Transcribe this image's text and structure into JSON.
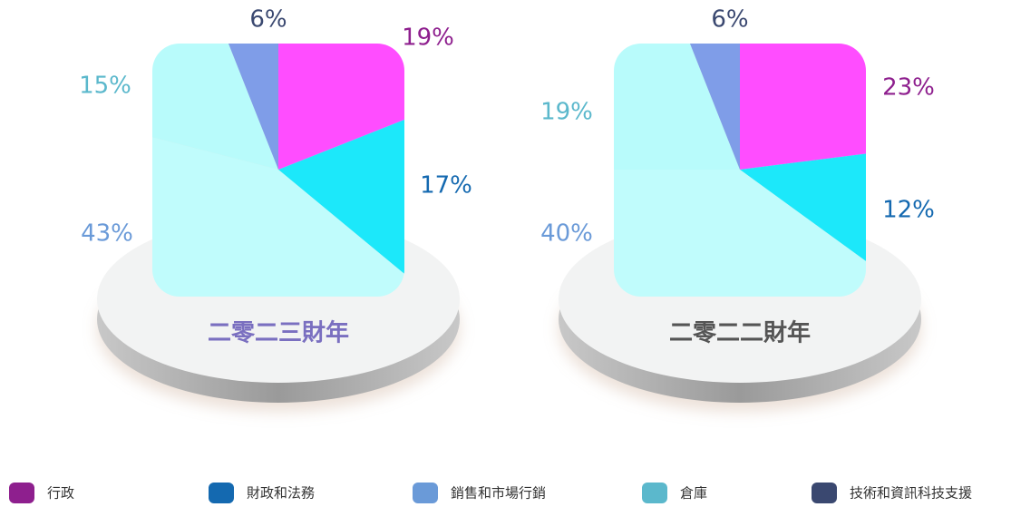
{
  "categories": [
    "行政",
    "財政和法務",
    "銷售和市場行銷",
    "倉庫",
    "技術和資訊科技支援"
  ],
  "legend_colors": [
    "#8e1f8e",
    "#1469b0",
    "#6a9ad8",
    "#5bb8cc",
    "#3a4870"
  ],
  "chart_data": [
    {
      "type": "pie",
      "title": "二零二三財年",
      "values": [
        19,
        17,
        43,
        15,
        6
      ],
      "value_labels": [
        "19%",
        "17%",
        "43%",
        "15%",
        "6%"
      ],
      "colors": [
        "#ff4dff",
        "#1fe8fa",
        "#c0fcfc",
        "#b8fbfb",
        "#7f9de8"
      ],
      "label_colors": [
        "#8e1f8e",
        "#1469b0",
        "#6a9ad8",
        "#5bb8cc",
        "#3a4870"
      ],
      "title_color": "#7a6fc0"
    },
    {
      "type": "pie",
      "title": "二零二二財年",
      "values": [
        23,
        12,
        40,
        19,
        6
      ],
      "value_labels": [
        "23%",
        "12%",
        "40%",
        "19%",
        "6%"
      ],
      "colors": [
        "#ff4dff",
        "#1fe8fa",
        "#c0fcfc",
        "#b8fbfb",
        "#7f9de8"
      ],
      "label_colors": [
        "#8e1f8e",
        "#1469b0",
        "#6a9ad8",
        "#5bb8cc",
        "#3a4870"
      ],
      "title_color": "#555555"
    }
  ]
}
